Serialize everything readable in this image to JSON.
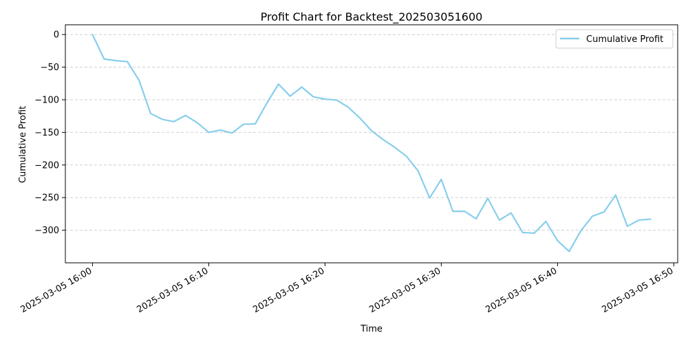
{
  "chart_data": {
    "type": "line",
    "title": "Profit Chart for Backtest_202503051600",
    "xlabel": "Time",
    "ylabel": "Cumulative Profit",
    "x_tick_labels": [
      "2025-03-05 16:00",
      "2025-03-05 16:10",
      "2025-03-05 16:20",
      "2025-03-05 16:30",
      "2025-03-05 16:40",
      "2025-03-05 16:50"
    ],
    "y_ticks": [
      0,
      -50,
      -100,
      -150,
      -200,
      -250,
      -300
    ],
    "y_tick_labels": [
      "0",
      "−50",
      "−100",
      "−150",
      "−200",
      "−250",
      "−300"
    ],
    "xlim": [
      "2025-03-05 15:57:40",
      "2025-03-05 16:50:20"
    ],
    "ylim": [
      -350,
      15
    ],
    "grid": "y-dashed",
    "legend_position": "top-right",
    "series": [
      {
        "name": "Cumulative Profit",
        "color": "#87CEEB",
        "x": [
          "2025-03-05 16:00",
          "2025-03-05 16:01",
          "2025-03-05 16:02",
          "2025-03-05 16:03",
          "2025-03-05 16:04",
          "2025-03-05 16:05",
          "2025-03-05 16:06",
          "2025-03-05 16:07",
          "2025-03-05 16:08",
          "2025-03-05 16:09",
          "2025-03-05 16:10",
          "2025-03-05 16:11",
          "2025-03-05 16:12",
          "2025-03-05 16:13",
          "2025-03-05 16:14",
          "2025-03-05 16:15",
          "2025-03-05 16:16",
          "2025-03-05 16:17",
          "2025-03-05 16:18",
          "2025-03-05 16:19",
          "2025-03-05 16:20",
          "2025-03-05 16:21",
          "2025-03-05 16:22",
          "2025-03-05 16:23",
          "2025-03-05 16:24",
          "2025-03-05 16:25",
          "2025-03-05 16:26",
          "2025-03-05 16:27",
          "2025-03-05 16:28",
          "2025-03-05 16:29",
          "2025-03-05 16:30",
          "2025-03-05 16:31",
          "2025-03-05 16:32",
          "2025-03-05 16:33",
          "2025-03-05 16:34",
          "2025-03-05 16:35",
          "2025-03-05 16:36",
          "2025-03-05 16:37",
          "2025-03-05 16:38",
          "2025-03-05 16:39",
          "2025-03-05 16:40",
          "2025-03-05 16:41",
          "2025-03-05 16:42",
          "2025-03-05 16:43",
          "2025-03-05 16:44",
          "2025-03-05 16:45",
          "2025-03-05 16:46",
          "2025-03-05 16:47",
          "2025-03-05 16:48"
        ],
        "values": [
          0,
          -37.5,
          -40,
          -41.5,
          -70,
          -121,
          -130,
          -133.5,
          -124,
          -135,
          -150,
          -146.5,
          -151,
          -137.5,
          -137,
          -105,
          -76,
          -94.5,
          -80.5,
          -95.5,
          -99,
          -100.5,
          -111.5,
          -128,
          -147.5,
          -161,
          -173,
          -186.5,
          -209,
          -250.5,
          -222,
          -271,
          -271,
          -282.5,
          -251,
          -284.5,
          -273.5,
          -303.5,
          -304.5,
          -286.5,
          -316,
          -332.5,
          -301,
          -278.5,
          -272,
          -246,
          -294,
          -284.5,
          -283
        ]
      }
    ]
  }
}
